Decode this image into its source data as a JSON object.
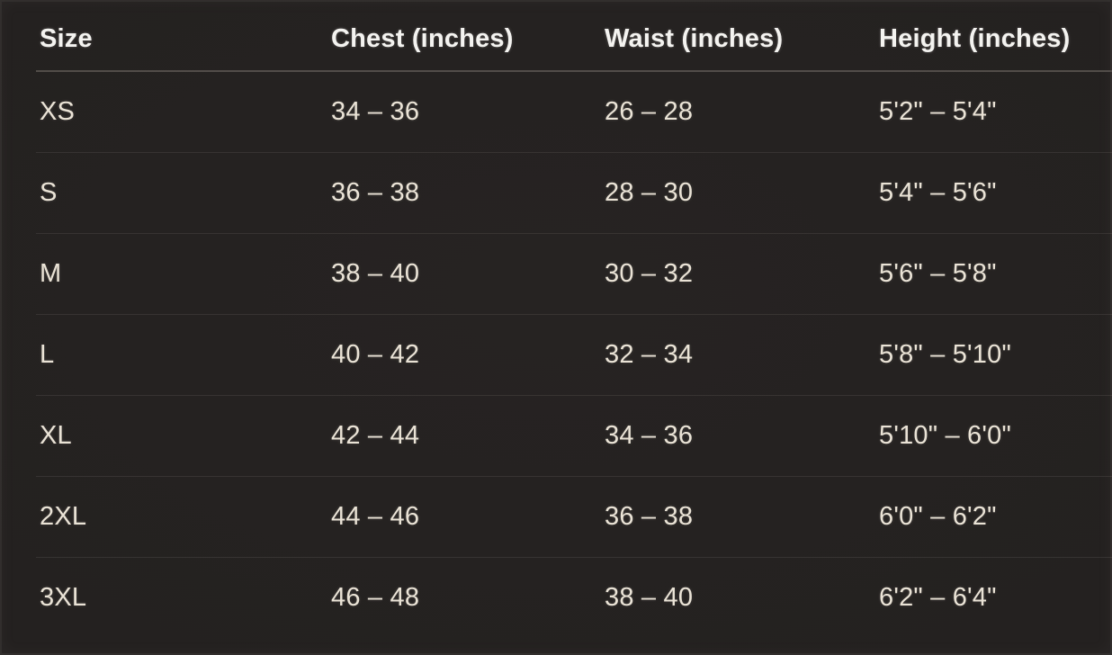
{
  "chart_data": {
    "type": "table",
    "title": "",
    "columns": [
      "Size",
      "Chest (inches)",
      "Waist (inches)",
      "Height (inches)"
    ],
    "rows": [
      [
        "XS",
        "34 – 36",
        "26 – 28",
        "5'2\" – 5'4\""
      ],
      [
        "S",
        "36 – 38",
        "28 – 30",
        "5'4\" – 5'6\""
      ],
      [
        "M",
        "38 – 40",
        "30 – 32",
        "5'6\" – 5'8\""
      ],
      [
        "L",
        "40 – 42",
        "32 – 34",
        "5'8\" – 5'10\""
      ],
      [
        "XL",
        "42 – 44",
        "34 – 36",
        "5'10\" – 6'0\""
      ],
      [
        "2XL",
        "44 – 46",
        "36 – 38",
        "6'0\" – 6'2\""
      ],
      [
        "3XL",
        "46 – 48",
        "38 – 40",
        "6'2\" – 6'4\""
      ]
    ],
    "layout_hints": {
      "grid": "horizontal-row-dividers-only",
      "header_divider": true
    }
  },
  "colors": {
    "background": "#242120",
    "header_text": "#f4f3f0",
    "cell_text": "#eae3d6",
    "header_divider": "#524d49",
    "row_divider": "rgba(240,232,220,0.09)"
  }
}
